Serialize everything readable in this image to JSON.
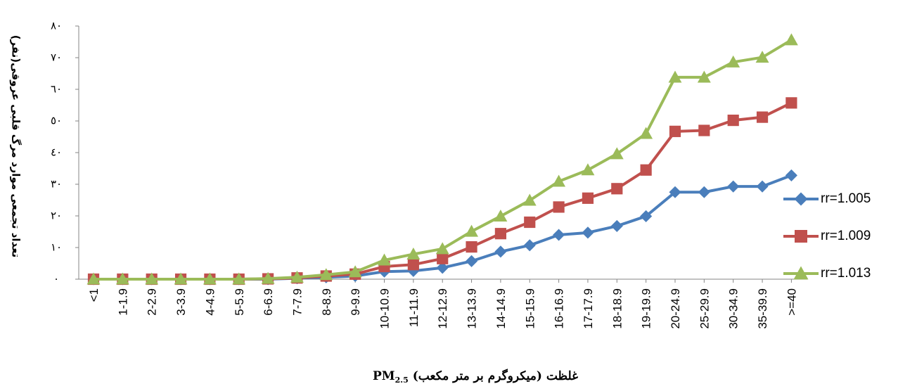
{
  "chart_data": {
    "type": "line",
    "title": "",
    "ylabel": "تعداد تجمعی موارد مرگ قلبی عروقی(نفر)",
    "xlabel": {
      "prefix": "غلظت (میکروگرم بر متر مکعب)",
      "pm_main": "PM",
      "pm_sub": "2.5"
    },
    "ylim": [
      0,
      80
    ],
    "y_ticks": [
      0,
      10,
      20,
      30,
      40,
      50,
      60,
      70,
      80
    ],
    "y_tick_labels": [
      "٠",
      "١٠",
      "٢٠",
      "٣٠",
      "٤٠",
      "٥٠",
      "٦٠",
      "٧٠",
      "٨٠"
    ],
    "grid": false,
    "legend_position": "right",
    "categories": [
      "<1",
      "1-1.9",
      "2-2.9",
      "3-3.9",
      "4-4.9",
      "5-5.9",
      "6-6.9",
      "7-7.9",
      "8-8.9",
      "9-9.9",
      "10-10.9",
      "11-11.9",
      "12-12.9",
      "13-13.9",
      "14-14.9",
      "15-15.9",
      "16-16.9",
      "17-17.9",
      "18-18.9",
      "19-19.9",
      "20-24.9",
      "25-29.9",
      "30-34.9",
      "35-39.9",
      ">=40"
    ],
    "series": [
      {
        "name": "rr=1.005",
        "color": "#4A7EBB",
        "marker": "diamond",
        "values": [
          0,
          0,
          0,
          0,
          0,
          0,
          0,
          0.3,
          0.6,
          1.0,
          2.4,
          2.6,
          3.6,
          5.7,
          8.7,
          10.7,
          14.0,
          14.7,
          16.8,
          19.9,
          27.5,
          27.5,
          29.3,
          29.3,
          32.8
        ]
      },
      {
        "name": "rr=1.009",
        "color": "#C0504D",
        "marker": "square",
        "values": [
          0,
          0,
          0,
          0,
          0,
          0,
          0.1,
          0.4,
          1.0,
          1.6,
          4.0,
          4.6,
          6.5,
          10.2,
          14.4,
          18.0,
          22.8,
          25.6,
          28.6,
          34.5,
          46.7,
          47.0,
          50.2,
          51.2,
          55.7
        ]
      },
      {
        "name": "rr=1.013",
        "color": "#9BBB59",
        "marker": "triangle",
        "values": [
          0,
          0,
          0,
          0,
          0,
          0,
          0.2,
          0.6,
          1.4,
          2.3,
          6.0,
          7.9,
          9.6,
          15.1,
          19.9,
          24.9,
          30.9,
          34.5,
          39.6,
          46.0,
          63.8,
          63.8,
          68.6,
          70.1,
          75.6
        ]
      }
    ]
  }
}
